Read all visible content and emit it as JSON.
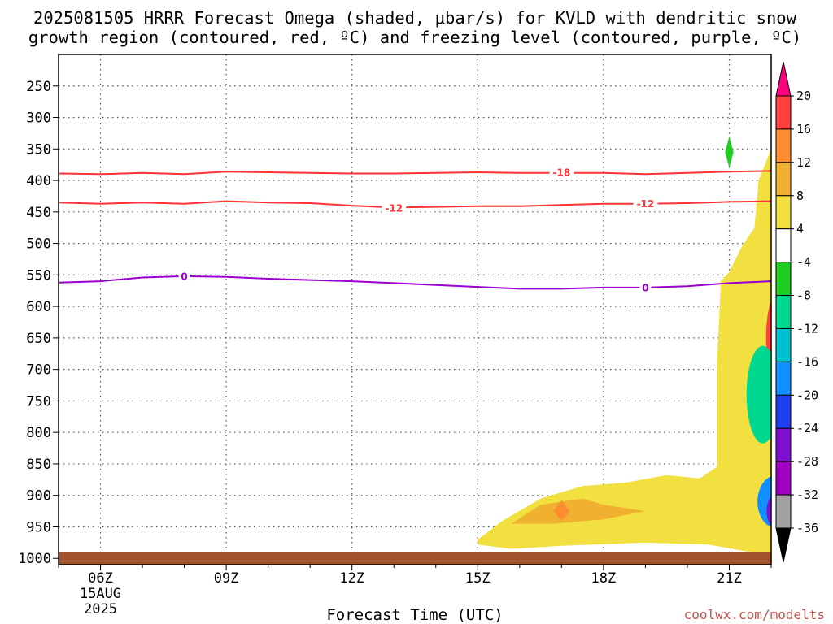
{
  "title": {
    "line1": "2025081505 HRRR Forecast Omega (shaded, μbar/s) for KVLD with dendritic snow",
    "line2": "growth region (contoured, red, ºC) and freezing level (contoured, purple, ºC)"
  },
  "credit": "coolwx.com/modelts",
  "chart_data": {
    "type": "area",
    "title": "2025081505 HRRR Forecast Omega (shaded, μbar/s) for KVLD with dendritic snow growth region (contoured, red, ºC) and freezing level (contoured, purple, ºC)",
    "xlabel": "Forecast Time (UTC)",
    "ylabel": "",
    "x_ticks": [
      "06Z",
      "09Z",
      "12Z",
      "15Z",
      "18Z",
      "21Z"
    ],
    "x_tick_hours": [
      6,
      9,
      12,
      15,
      18,
      21
    ],
    "x_date_line1": "15AUG",
    "x_date_line2": "2025",
    "xlim": [
      5,
      22
    ],
    "y_ticks": [
      250,
      300,
      350,
      400,
      450,
      500,
      550,
      600,
      650,
      700,
      750,
      800,
      850,
      900,
      950,
      1000
    ],
    "ylim": [
      200,
      1010
    ],
    "grid": true,
    "colorbar": {
      "levels": [
        20,
        16,
        12,
        8,
        4,
        -4,
        -8,
        -12,
        -16,
        -20,
        -24,
        -28,
        -32,
        -36
      ],
      "colors": [
        "#ff0080",
        "#ff4040",
        "#ff8c30",
        "#f0b030",
        "#f2e040",
        "#ffffff",
        "#20cc20",
        "#00d890",
        "#00c0d0",
        "#1090ff",
        "#2040f0",
        "#8010d0",
        "#a000c0",
        "#a0a0a0",
        "#000000"
      ],
      "units": "μbar/s"
    },
    "contours": [
      {
        "name": "-18",
        "color": "#ff3333",
        "x": [
          5,
          6,
          7,
          8,
          9,
          10,
          11,
          12,
          13,
          14,
          15,
          16,
          17,
          18,
          19,
          20,
          21,
          22
        ],
        "y": [
          389,
          390,
          388,
          390,
          386,
          387,
          388,
          389,
          389,
          388,
          387,
          388,
          388,
          388,
          390,
          388,
          386,
          385
        ]
      },
      {
        "name": "-12",
        "color": "#ff3333",
        "x": [
          5,
          6,
          7,
          8,
          9,
          10,
          11,
          12,
          13,
          14,
          15,
          16,
          17,
          18,
          19,
          20,
          21,
          22
        ],
        "y": [
          435,
          437,
          435,
          437,
          433,
          435,
          436,
          440,
          443,
          442,
          441,
          441,
          439,
          437,
          437,
          436,
          434,
          433
        ]
      },
      {
        "name": "0",
        "color": "#9900cc",
        "x": [
          5,
          6,
          7,
          8,
          9,
          10,
          11,
          12,
          13,
          14,
          15,
          16,
          17,
          18,
          19,
          20,
          21,
          22
        ],
        "y": [
          562,
          560,
          554,
          552,
          553,
          556,
          558,
          560,
          563,
          566,
          569,
          572,
          572,
          570,
          570,
          568,
          563,
          560
        ]
      }
    ],
    "contour_labels": [
      {
        "text": "-18",
        "x": 17.0,
        "y": 387,
        "color": "#ff3333"
      },
      {
        "text": "-12",
        "x": 13.0,
        "y": 444,
        "color": "#ff3333"
      },
      {
        "text": "-12",
        "x": 19.0,
        "y": 437,
        "color": "#ff3333"
      },
      {
        "text": "0",
        "x": 8.0,
        "y": 552,
        "color": "#9900cc"
      },
      {
        "text": "0",
        "x": 19.0,
        "y": 570,
        "color": "#9900cc"
      }
    ],
    "shaded": [
      {
        "level": "4 to 8",
        "color": "#f2e040",
        "points": [
          [
            15.0,
            970
          ],
          [
            15.6,
            940
          ],
          [
            16.5,
            905
          ],
          [
            17.5,
            885
          ],
          [
            18.5,
            880
          ],
          [
            19.5,
            868
          ],
          [
            20.3,
            873
          ],
          [
            20.7,
            855
          ],
          [
            20.7,
            700
          ],
          [
            20.8,
            560
          ],
          [
            21.0,
            545
          ],
          [
            21.3,
            505
          ],
          [
            21.6,
            475
          ],
          [
            21.7,
            400
          ],
          [
            22.0,
            350
          ],
          [
            22.3,
            335
          ],
          [
            22.5,
            330
          ],
          [
            22.5,
            1000
          ],
          [
            21.5,
            990
          ],
          [
            20.5,
            978
          ],
          [
            19.0,
            975
          ],
          [
            17.0,
            980
          ],
          [
            15.8,
            985
          ],
          [
            15.0,
            978
          ]
        ]
      },
      {
        "level": "8 to 12",
        "color": "#f0b030",
        "points": [
          [
            15.8,
            945
          ],
          [
            16.5,
            915
          ],
          [
            17.5,
            905
          ],
          [
            18.0,
            915
          ],
          [
            19.0,
            925
          ],
          [
            18.0,
            938
          ],
          [
            16.8,
            945
          ]
        ]
      },
      {
        "level": "12 to 16",
        "color": "#ff8c30",
        "points": [
          [
            16.8,
            925
          ],
          [
            17.0,
            908
          ],
          [
            17.2,
            925
          ],
          [
            17.0,
            940
          ]
        ]
      },
      {
        "level": "-8 to -4",
        "color": "#20cc20",
        "points": [
          [
            21.0,
            330
          ],
          [
            21.1,
            355
          ],
          [
            21.0,
            380
          ],
          [
            20.9,
            355
          ]
        ]
      }
    ]
  }
}
